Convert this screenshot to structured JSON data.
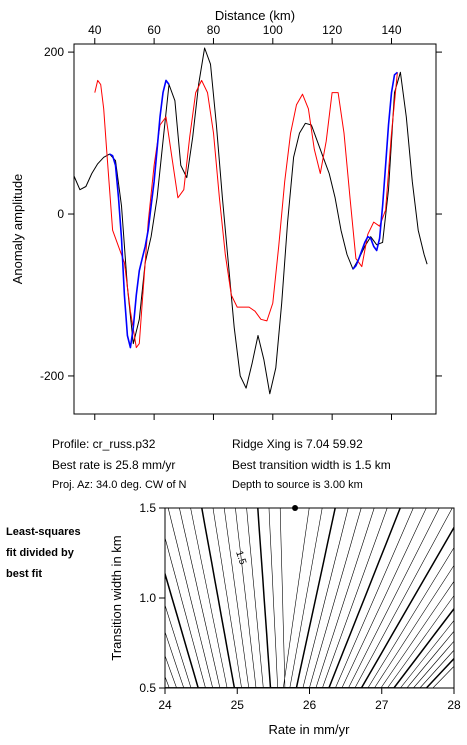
{
  "chart_data": [
    {
      "type": "line",
      "xlabel": "Distance (km)",
      "ylabel": "Anomaly amplitude",
      "xlim": [
        33,
        155
      ],
      "ylim": [
        -247,
        210
      ],
      "xticks": [
        40,
        60,
        80,
        100,
        120,
        140
      ],
      "yticks": [
        -200,
        0,
        200
      ],
      "series": [
        {
          "color": "#000000",
          "x": [
            33,
            35,
            37,
            39,
            41,
            43,
            45,
            47,
            49,
            51,
            53,
            55,
            57,
            59,
            61,
            63,
            65,
            67,
            69,
            71,
            73,
            75,
            77,
            79,
            81,
            83,
            85,
            87,
            89,
            91,
            93,
            95,
            97,
            99,
            101,
            103,
            105,
            107,
            109,
            111,
            113,
            115,
            117,
            119,
            121,
            123,
            125,
            127,
            129,
            131,
            133,
            135,
            137,
            139,
            141,
            143,
            145,
            147,
            149,
            151,
            152
          ],
          "y": [
            47,
            30,
            34,
            50,
            62,
            70,
            74,
            66,
            10,
            -90,
            -160,
            -130,
            -60,
            -28,
            20,
            90,
            160,
            140,
            60,
            45,
            95,
            160,
            205,
            185,
            110,
            20,
            -60,
            -140,
            -200,
            -215,
            -185,
            -150,
            -180,
            -222,
            -190,
            -110,
            -10,
            70,
            100,
            112,
            110,
            90,
            70,
            50,
            20,
            -20,
            -50,
            -68,
            -55,
            -40,
            -28,
            -38,
            -35,
            30,
            150,
            175,
            120,
            40,
            -20,
            -50,
            -62
          ]
        },
        {
          "color": "#ff0000",
          "x": [
            40,
            41,
            42,
            43,
            44,
            46,
            48,
            50,
            52,
            54,
            55,
            56,
            58,
            60,
            62,
            64,
            66,
            68,
            70,
            72,
            74,
            76,
            78,
            80,
            82,
            84,
            86,
            88,
            90,
            92,
            94,
            96,
            98,
            100,
            102,
            104,
            106,
            108,
            110,
            112,
            114,
            116,
            118,
            120,
            122,
            124,
            126,
            128,
            130,
            132,
            134,
            136,
            138,
            140,
            142
          ],
          "y": [
            150,
            165,
            160,
            130,
            80,
            -20,
            -40,
            -60,
            -120,
            -165,
            -160,
            -110,
            -10,
            60,
            110,
            120,
            70,
            20,
            30,
            95,
            150,
            165,
            150,
            100,
            20,
            -50,
            -100,
            -115,
            -115,
            -115,
            -120,
            -130,
            -132,
            -110,
            -40,
            40,
            100,
            135,
            148,
            130,
            80,
            50,
            90,
            150,
            150,
            100,
            20,
            -55,
            -65,
            -25,
            -10,
            -15,
            5,
            100,
            175
          ]
        },
        {
          "color": "#0000ff",
          "x": [
            45,
            46,
            47,
            48,
            49,
            50,
            51,
            52,
            53,
            54,
            55,
            56,
            57,
            58,
            59,
            60,
            61,
            62,
            63,
            64,
            65
          ],
          "y": [
            74,
            72,
            60,
            20,
            -30,
            -100,
            -150,
            -165,
            -140,
            -100,
            -70,
            -55,
            -40,
            -20,
            10,
            40,
            80,
            120,
            150,
            165,
            160
          ]
        },
        {
          "color": "#0000ff",
          "x": [
            127,
            128,
            129,
            130,
            131,
            132,
            133,
            134,
            135,
            136,
            137,
            138,
            139,
            140,
            141,
            142
          ],
          "y": [
            -68,
            -64,
            -55,
            -45,
            -35,
            -28,
            -30,
            -40,
            -45,
            -30,
            10,
            60,
            110,
            150,
            172,
            175
          ]
        }
      ]
    },
    {
      "type": "contour",
      "xlabel": "Rate in mm/yr",
      "ylabel": "Transition width in km",
      "xlim": [
        24,
        28
      ],
      "ylim": [
        0.5,
        1.5
      ],
      "xticks": [
        24,
        25,
        26,
        27,
        28
      ],
      "yticks": [
        0.5,
        1.0,
        1.5
      ],
      "best_fit": {
        "rate": 25.8,
        "width": 1.5
      },
      "contour_label": "1.5"
    }
  ],
  "info": {
    "profile": "Profile: cr_russ.p32",
    "best_rate": "Best rate is 25.8 mm/yr",
    "proj_az": "Proj. Az: 34.0 deg. CW of N",
    "ridge_xing": "Ridge Xing is 7.04 59.92",
    "best_width": "Best transition width is 1.5 km",
    "depth": "Depth to source is   3.00 km"
  },
  "side_note": [
    "Least-squares",
    "fit divided by",
    "best fit"
  ]
}
